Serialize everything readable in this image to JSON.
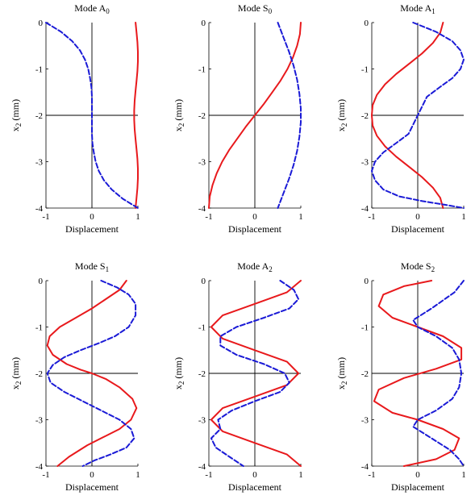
{
  "chart_data": [
    {
      "type": "line",
      "title": "Mode A",
      "title_subscript": "0",
      "xlabel": "Displacement",
      "ylabel": "x",
      "ylabel_subscript": "2",
      "ylabel_unit": " (mm)",
      "xlim": [
        -1,
        1
      ],
      "ylim": [
        -4,
        0
      ],
      "xticks": [
        "-1",
        "0",
        "1"
      ],
      "yticks": [
        "0",
        "-1",
        "-2",
        "-3",
        "-4"
      ],
      "series": [
        {
          "style": "solid",
          "color": "#e8191c",
          "x": [
            0.95,
            0.97,
            0.99,
            1.0,
            1.0,
            0.99,
            0.97,
            0.95,
            0.93,
            0.92,
            0.92,
            0.93,
            0.95,
            0.97,
            0.99,
            1.0,
            1.0,
            0.99,
            0.97,
            0.95
          ],
          "y": [
            0.0,
            -0.21,
            -0.42,
            -0.63,
            -0.84,
            -1.05,
            -1.26,
            -1.47,
            -1.68,
            -1.89,
            -2.1,
            -2.31,
            -2.52,
            -2.73,
            -2.94,
            -3.15,
            -3.36,
            -3.57,
            -3.78,
            -4.0
          ]
        },
        {
          "style": "dashed",
          "color": "#1a1ad6",
          "x": [
            -1.0,
            -0.67,
            -0.43,
            -0.26,
            -0.15,
            -0.08,
            -0.04,
            -0.01,
            0.0,
            0.0,
            0.0,
            0.0,
            0.0,
            0.01,
            0.04,
            0.08,
            0.15,
            0.26,
            0.43,
            0.67,
            1.0
          ],
          "y": [
            0.0,
            -0.2,
            -0.4,
            -0.6,
            -0.8,
            -1.0,
            -1.2,
            -1.4,
            -1.6,
            -1.8,
            -2.0,
            -2.2,
            -2.4,
            -2.6,
            -2.8,
            -3.0,
            -3.2,
            -3.4,
            -3.6,
            -3.8,
            -4.0
          ]
        }
      ]
    },
    {
      "type": "line",
      "title": "Mode S",
      "title_subscript": "0",
      "xlabel": "Displacement",
      "ylabel": "x",
      "ylabel_subscript": "2",
      "ylabel_unit": " (mm)",
      "xlim": [
        -1,
        1
      ],
      "ylim": [
        -4,
        0
      ],
      "xticks": [
        "-1",
        "0",
        "1"
      ],
      "yticks": [
        "0",
        "-1",
        "-2",
        "-3",
        "-4"
      ],
      "series": [
        {
          "style": "solid",
          "color": "#e8191c",
          "x": [
            1.0,
            0.98,
            0.92,
            0.83,
            0.71,
            0.56,
            0.38,
            0.2,
            0.0,
            -0.2,
            -0.38,
            -0.56,
            -0.71,
            -0.83,
            -0.92,
            -0.98,
            -1.0
          ],
          "y": [
            0.0,
            -0.25,
            -0.5,
            -0.75,
            -1.0,
            -1.25,
            -1.5,
            -1.75,
            -2.0,
            -2.25,
            -2.5,
            -2.75,
            -3.0,
            -3.25,
            -3.5,
            -3.75,
            -4.0
          ]
        },
        {
          "style": "dashed",
          "color": "#1a1ad6",
          "x": [
            0.5,
            0.62,
            0.74,
            0.84,
            0.92,
            0.97,
            1.0,
            1.0,
            0.97,
            0.92,
            0.84,
            0.74,
            0.62,
            0.5
          ],
          "y": [
            0.0,
            -0.31,
            -0.62,
            -0.92,
            -1.23,
            -1.54,
            -1.85,
            -2.15,
            -2.46,
            -2.77,
            -3.08,
            -3.38,
            -3.69,
            -4.0
          ]
        }
      ]
    },
    {
      "type": "line",
      "title": "Mode A",
      "title_subscript": "1",
      "xlabel": "Displacement",
      "ylabel": "x",
      "ylabel_subscript": "2",
      "ylabel_unit": " (mm)",
      "xlim": [
        -1,
        1
      ],
      "ylim": [
        -4,
        0
      ],
      "xticks": [
        "-1",
        "0",
        "1"
      ],
      "yticks": [
        "0",
        "-1",
        "-2",
        "-3",
        "-4"
      ],
      "series": [
        {
          "style": "solid",
          "color": "#e8191c",
          "x": [
            0.55,
            0.49,
            0.33,
            0.09,
            -0.19,
            -0.47,
            -0.71,
            -0.89,
            -0.98,
            -1.0,
            -0.98,
            -0.89,
            -0.71,
            -0.47,
            -0.19,
            0.09,
            0.33,
            0.49,
            0.55
          ],
          "y": [
            0.0,
            -0.22,
            -0.44,
            -0.67,
            -0.89,
            -1.11,
            -1.33,
            -1.56,
            -1.78,
            -2.0,
            -2.22,
            -2.44,
            -2.67,
            -2.89,
            -3.11,
            -3.33,
            -3.56,
            -3.78,
            -4.0
          ]
        },
        {
          "style": "dashed",
          "color": "#1a1ad6",
          "x": [
            -0.1,
            0.4,
            0.75,
            0.93,
            1.0,
            0.93,
            0.75,
            0.47,
            0.2,
            0.0,
            -0.2,
            -0.47,
            -0.75,
            -0.93,
            -1.0,
            -0.93,
            -0.75,
            -0.4,
            0.1,
            0.6,
            1.0
          ],
          "y": [
            0.0,
            -0.2,
            -0.4,
            -0.6,
            -0.8,
            -1.0,
            -1.2,
            -1.4,
            -1.6,
            -2.0,
            -2.4,
            -2.6,
            -2.8,
            -3.0,
            -3.2,
            -3.4,
            -3.6,
            -3.75,
            -3.85,
            -3.93,
            -4.0
          ]
        }
      ]
    },
    {
      "type": "line",
      "title": "Mode S",
      "title_subscript": "1",
      "xlabel": "Displacement",
      "ylabel": "x",
      "ylabel_subscript": "2",
      "ylabel_unit": " (mm)",
      "xlim": [
        -1,
        1
      ],
      "ylim": [
        -4,
        0
      ],
      "xticks": [
        "-1",
        "0",
        "1"
      ],
      "yticks": [
        "0",
        "-1",
        "-2",
        "-3",
        "-4"
      ],
      "series": [
        {
          "style": "solid",
          "color": "#e8191c",
          "x": [
            0.75,
            0.6,
            0.3,
            0.0,
            -0.35,
            -0.7,
            -0.92,
            -0.97,
            -0.85,
            -0.55,
            -0.25,
            0.0,
            0.3,
            0.6,
            0.88,
            0.97,
            0.85,
            0.6,
            0.3,
            -0.1,
            -0.5,
            -0.75
          ],
          "y": [
            0.0,
            -0.2,
            -0.4,
            -0.6,
            -0.8,
            -1.0,
            -1.2,
            -1.4,
            -1.6,
            -1.8,
            -1.92,
            -2.0,
            -2.12,
            -2.3,
            -2.55,
            -2.75,
            -3.0,
            -3.2,
            -3.35,
            -3.55,
            -3.8,
            -4.0
          ]
        },
        {
          "style": "dashed",
          "color": "#1a1ad6",
          "x": [
            0.2,
            0.55,
            0.8,
            0.95,
            0.95,
            0.8,
            0.5,
            0.15,
            -0.25,
            -0.6,
            -0.85,
            -0.97,
            -0.9,
            -0.6,
            -0.2,
            0.2,
            0.6,
            0.85,
            0.92,
            0.75,
            0.4,
            0.05,
            -0.2
          ],
          "y": [
            0.0,
            -0.15,
            -0.3,
            -0.5,
            -0.75,
            -1.0,
            -1.2,
            -1.35,
            -1.5,
            -1.65,
            -1.82,
            -2.0,
            -2.2,
            -2.4,
            -2.6,
            -2.8,
            -3.0,
            -3.2,
            -3.4,
            -3.6,
            -3.75,
            -3.88,
            -4.0
          ]
        }
      ]
    },
    {
      "type": "line",
      "title": "Mode A",
      "title_subscript": "2",
      "xlabel": "Displacement",
      "ylabel": "x",
      "ylabel_subscript": "2",
      "ylabel_unit": " (mm)",
      "xlim": [
        -1,
        1
      ],
      "ylim": [
        -4,
        0
      ],
      "xticks": [
        "-1",
        "0",
        "1"
      ],
      "yticks": [
        "0",
        "-1",
        "-2",
        "-3",
        "-4"
      ],
      "series": [
        {
          "style": "solid",
          "color": "#e8191c",
          "x": [
            1.0,
            0.7,
            0.0,
            -0.7,
            -0.95,
            -0.7,
            0.0,
            0.7,
            0.95,
            0.7,
            0.0,
            -0.7,
            -0.95,
            -0.7,
            0.0,
            0.7,
            1.0
          ],
          "y": [
            0.0,
            -0.25,
            -0.5,
            -0.75,
            -1.0,
            -1.25,
            -1.5,
            -1.75,
            -2.0,
            -2.25,
            -2.5,
            -2.75,
            -3.0,
            -3.25,
            -3.5,
            -3.75,
            -4.0
          ]
        },
        {
          "style": "dashed",
          "color": "#1a1ad6",
          "x": [
            0.55,
            0.85,
            0.95,
            0.75,
            0.2,
            -0.4,
            -0.75,
            -0.75,
            -0.4,
            0.2,
            0.65,
            0.75,
            0.55,
            0.0,
            -0.5,
            -0.8,
            -0.75,
            -0.95,
            -0.85,
            -0.55,
            -0.25
          ],
          "y": [
            0.0,
            -0.2,
            -0.4,
            -0.6,
            -0.8,
            -1.0,
            -1.2,
            -1.4,
            -1.6,
            -1.8,
            -2.0,
            -2.2,
            -2.4,
            -2.6,
            -2.8,
            -3.0,
            -3.2,
            -3.4,
            -3.6,
            -3.8,
            -4.0
          ]
        }
      ]
    },
    {
      "type": "line",
      "title": "Mode S",
      "title_subscript": "2",
      "xlabel": "Displacement",
      "ylabel": "x",
      "ylabel_subscript": "2",
      "ylabel_unit": " (mm)",
      "xlim": [
        -1,
        1
      ],
      "ylim": [
        -4,
        0
      ],
      "xticks": [
        "-1",
        "0",
        "1"
      ],
      "yticks": [
        "0",
        "-1",
        "-2",
        "-3",
        "-4"
      ],
      "series": [
        {
          "style": "solid",
          "color": "#e8191c",
          "x": [
            0.3,
            -0.3,
            -0.75,
            -0.85,
            -0.55,
            0.0,
            0.55,
            0.95,
            0.95,
            0.4,
            -0.3,
            -0.85,
            -0.95,
            -0.55,
            0.0,
            0.55,
            0.9,
            0.8,
            0.4,
            -0.3
          ],
          "y": [
            0.0,
            -0.12,
            -0.3,
            -0.55,
            -0.8,
            -1.0,
            -1.2,
            -1.45,
            -1.7,
            -1.9,
            -2.1,
            -2.35,
            -2.6,
            -2.85,
            -3.0,
            -3.2,
            -3.4,
            -3.65,
            -3.85,
            -4.0
          ]
        },
        {
          "style": "dashed",
          "color": "#1a1ad6",
          "x": [
            1.0,
            0.8,
            0.3,
            -0.1,
            0.0,
            0.4,
            0.75,
            0.9,
            0.95,
            0.9,
            0.75,
            0.4,
            0.0,
            -0.1,
            0.3,
            0.7,
            0.9,
            1.0
          ],
          "y": [
            0.0,
            -0.25,
            -0.6,
            -0.85,
            -1.0,
            -1.2,
            -1.45,
            -1.7,
            -2.0,
            -2.3,
            -2.55,
            -2.8,
            -3.0,
            -3.15,
            -3.4,
            -3.65,
            -3.85,
            -4.0
          ]
        }
      ]
    }
  ]
}
